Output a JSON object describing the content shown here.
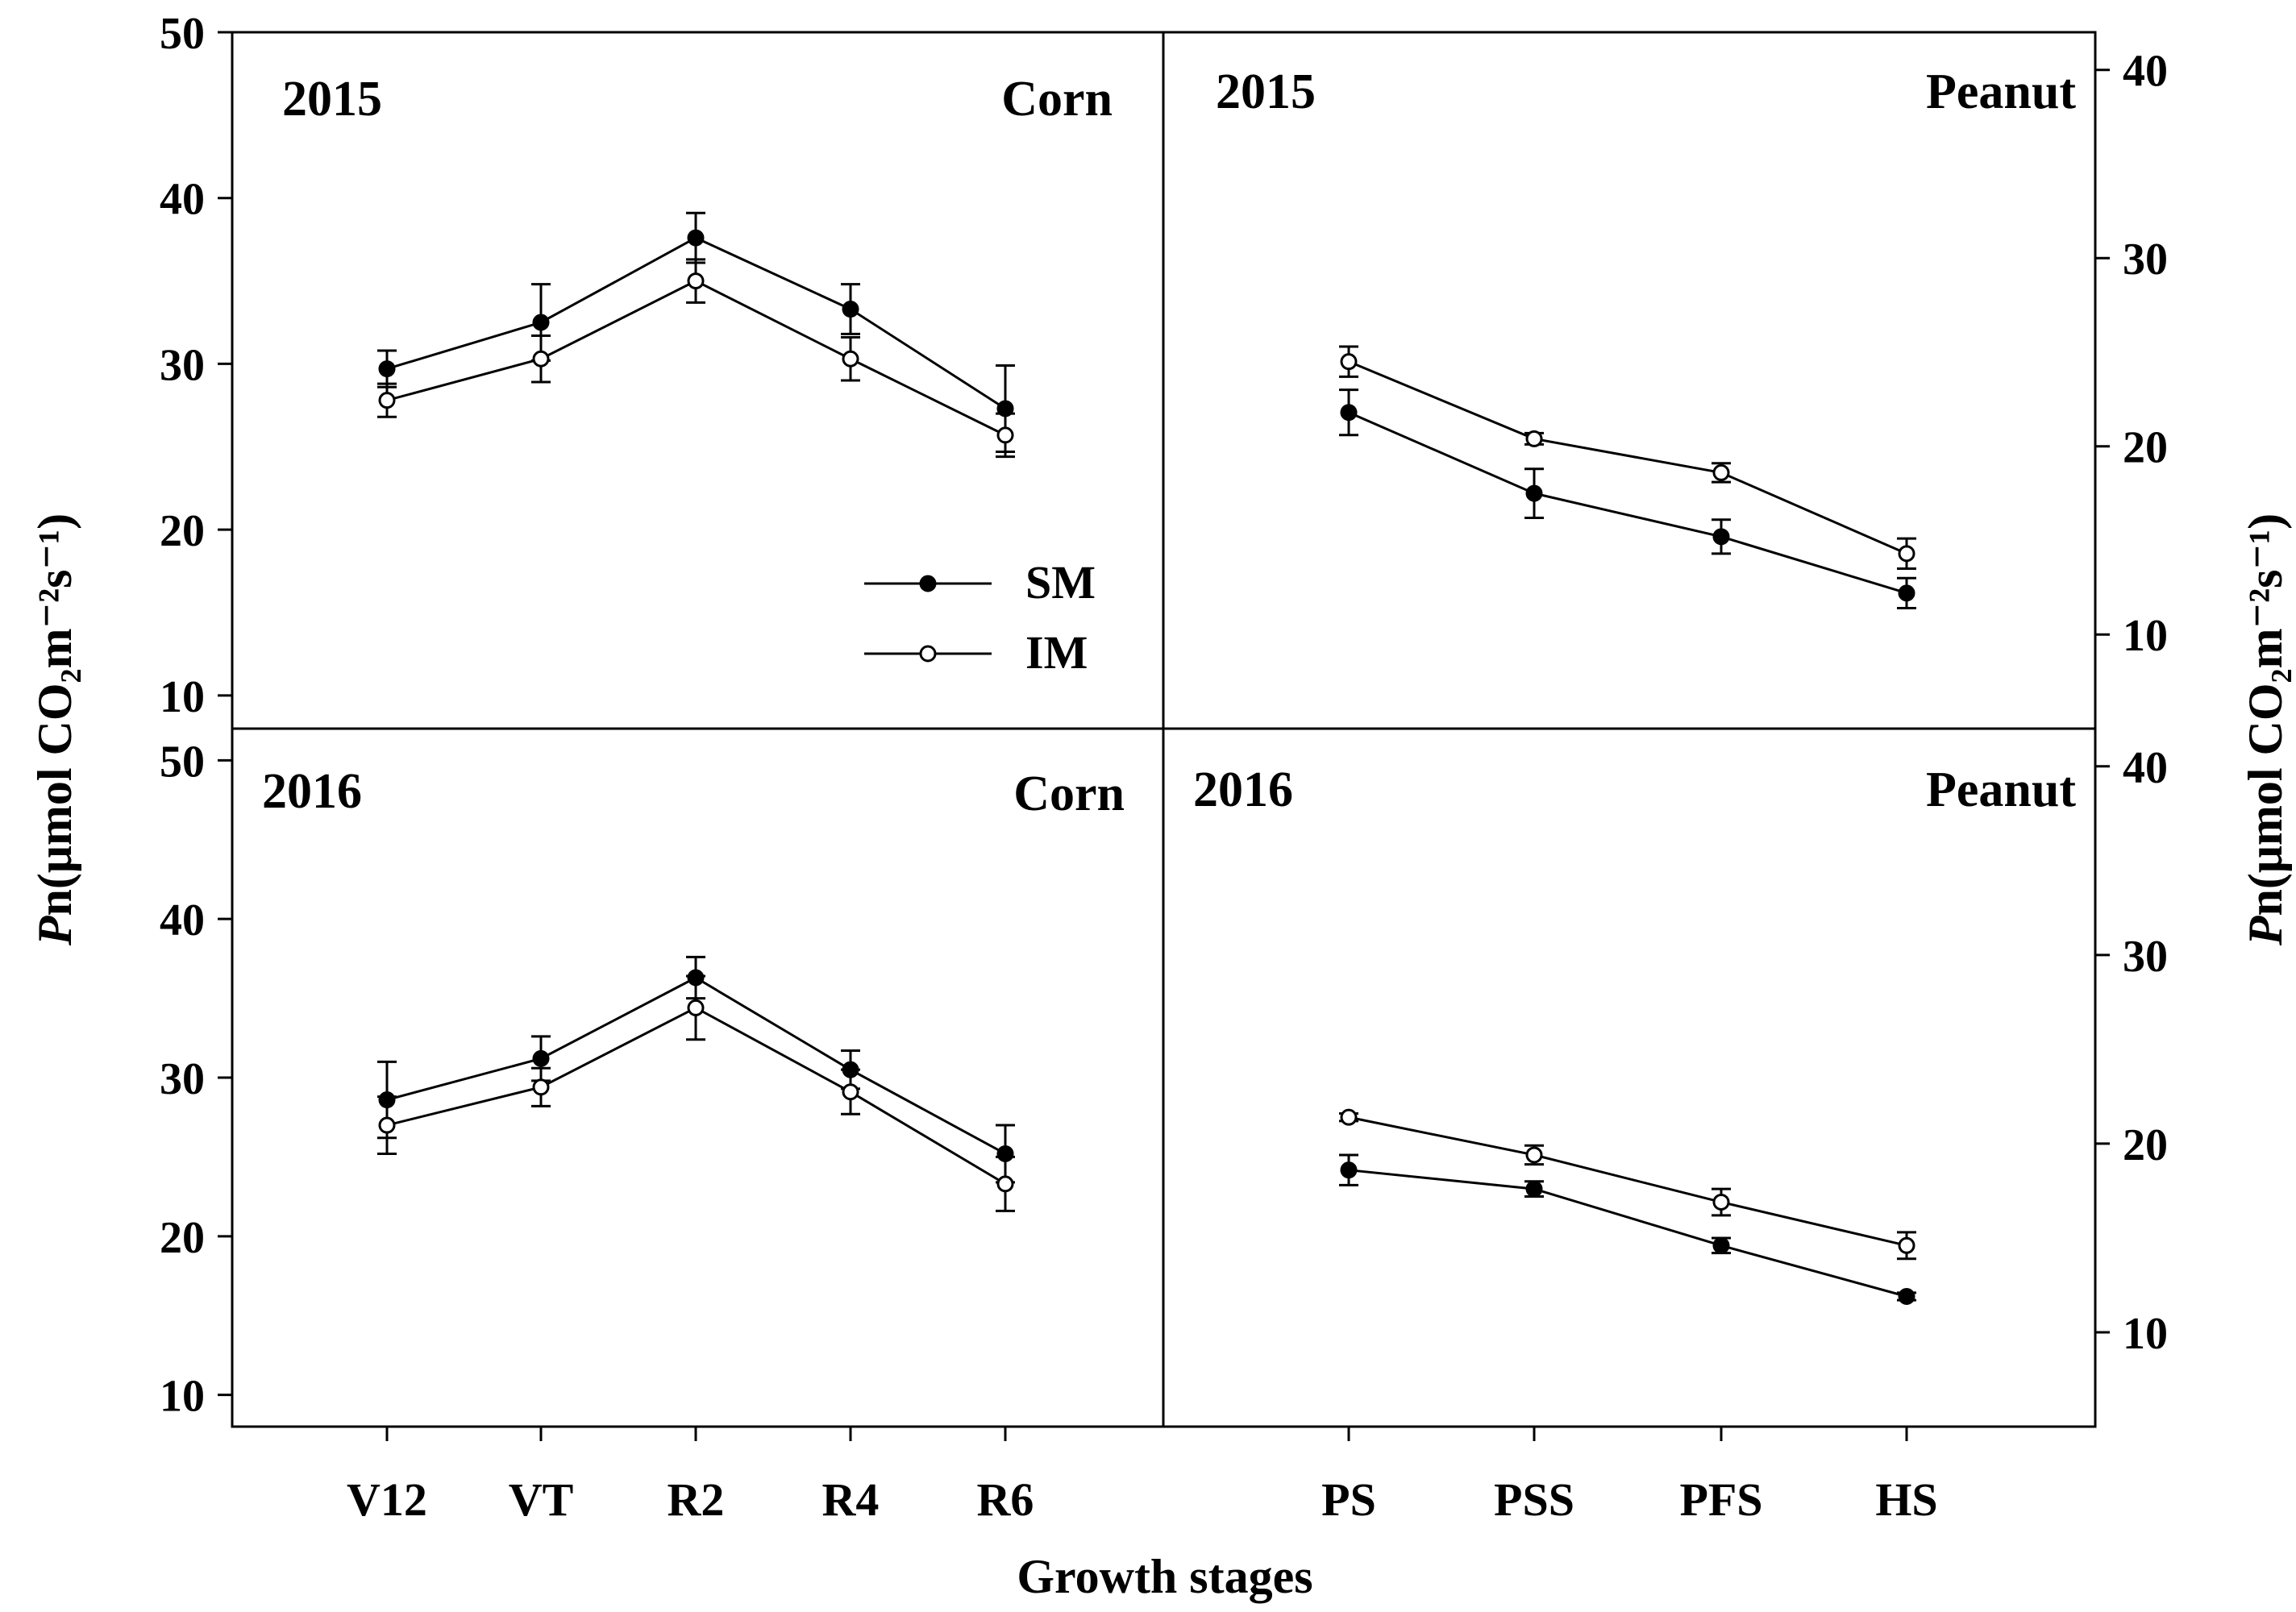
{
  "figure": {
    "xlabel": "Growth stages",
    "ylabel_left_prefix": "P",
    "ylabel_left_rest": "n(μmol CO₂m⁻²s⁻¹)",
    "ylabel_right_prefix": "P",
    "ylabel_right_rest": "n(μmol CO₂m⁻²s⁻¹)"
  },
  "legend": [
    {
      "label": "SM",
      "marker": "filled"
    },
    {
      "label": "IM",
      "marker": "open"
    }
  ],
  "colors": {
    "ink": "#000000",
    "background": "#ffffff"
  },
  "chart_data": [
    {
      "type": "line",
      "year": "2015",
      "crop": "Corn",
      "categories": [
        "V12",
        "VT",
        "R2",
        "R4",
        "R6"
      ],
      "ylim": [
        8,
        50
      ],
      "yticks": [
        10,
        20,
        30,
        40,
        50
      ],
      "axis_side": "left",
      "series": [
        {
          "name": "SM",
          "marker": "filled",
          "values": [
            29.7,
            32.5,
            37.6,
            33.3,
            27.3
          ],
          "errors": [
            1.1,
            2.3,
            1.5,
            1.5,
            2.6
          ]
        },
        {
          "name": "IM",
          "marker": "open",
          "values": [
            27.8,
            30.3,
            35.0,
            30.3,
            25.7
          ],
          "errors": [
            1.0,
            1.4,
            1.3,
            1.3,
            1.3
          ]
        }
      ]
    },
    {
      "type": "line",
      "year": "2015",
      "crop": "Peanut",
      "categories": [
        "PS",
        "PSS",
        "PFS",
        "HS"
      ],
      "ylim": [
        5,
        42
      ],
      "yticks": [
        10,
        20,
        30,
        40
      ],
      "axis_side": "right",
      "series": [
        {
          "name": "SM",
          "marker": "filled",
          "values": [
            21.8,
            17.5,
            15.2,
            12.2
          ],
          "errors": [
            1.2,
            1.3,
            0.9,
            0.8
          ]
        },
        {
          "name": "IM",
          "marker": "open",
          "values": [
            24.5,
            20.4,
            18.6,
            14.3
          ],
          "errors": [
            0.8,
            0.3,
            0.5,
            0.8
          ]
        }
      ]
    },
    {
      "type": "line",
      "year": "2016",
      "crop": "Corn",
      "categories": [
        "V12",
        "VT",
        "R2",
        "R4",
        "R6"
      ],
      "ylim": [
        8,
        52
      ],
      "yticks": [
        10,
        20,
        30,
        40,
        50
      ],
      "axis_side": "left",
      "series": [
        {
          "name": "SM",
          "marker": "filled",
          "values": [
            28.6,
            31.2,
            36.3,
            30.5,
            25.2
          ],
          "errors": [
            2.4,
            1.4,
            1.3,
            1.2,
            1.8
          ]
        },
        {
          "name": "IM",
          "marker": "open",
          "values": [
            27.0,
            29.4,
            34.4,
            29.1,
            23.3
          ],
          "errors": [
            1.8,
            1.2,
            2.0,
            1.4,
            1.7
          ]
        }
      ]
    },
    {
      "type": "line",
      "year": "2016",
      "crop": "Peanut",
      "categories": [
        "PS",
        "PSS",
        "PFS",
        "HS"
      ],
      "ylim": [
        5,
        42
      ],
      "yticks": [
        10,
        20,
        30,
        40
      ],
      "axis_side": "right",
      "series": [
        {
          "name": "SM",
          "marker": "filled",
          "values": [
            18.6,
            17.6,
            14.6,
            11.9
          ],
          "errors": [
            0.8,
            0.4,
            0.4,
            0.2
          ]
        },
        {
          "name": "IM",
          "marker": "open",
          "values": [
            21.4,
            19.4,
            16.9,
            14.6
          ],
          "errors": [
            0.2,
            0.5,
            0.7,
            0.7
          ]
        }
      ]
    }
  ]
}
